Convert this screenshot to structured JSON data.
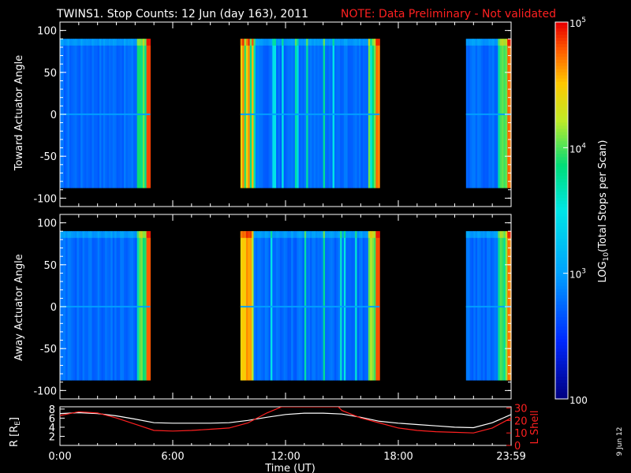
{
  "title": "TWINS1. Stop Counts: 12 Jun (day 163), 2011",
  "note": "NOTE: Data Preliminary - Not validated",
  "colorbar": {
    "label_main": "LOG",
    "label_sub": "10",
    "label_rest": "(Total Stops per Scan)",
    "ticks": [
      {
        "value": 100000,
        "label_base": "10",
        "label_exp": "5"
      },
      {
        "value": 10000,
        "label_base": "10",
        "label_exp": "4"
      },
      {
        "value": 1000,
        "label_base": "10",
        "label_exp": "3"
      },
      {
        "value": 100,
        "label_base": "100",
        "label_exp": ""
      }
    ],
    "range": [
      100,
      100000
    ]
  },
  "date_stamp": "9 Jun 12",
  "chart_data": [
    {
      "type": "heatmap",
      "ylabel": "Toward Actuator Angle",
      "ylim": [
        -110,
        110
      ],
      "y_ticks": [
        100,
        50,
        0,
        -50,
        -100
      ],
      "data_y_range": [
        -88,
        90
      ],
      "x_unit": "hours UT",
      "xlim": [
        0,
        24
      ],
      "coverage": [
        [
          0.0,
          4.8
        ],
        [
          9.6,
          17.0
        ],
        [
          21.6,
          24.0
        ]
      ],
      "typical_log10": 2.75
    },
    {
      "type": "heatmap",
      "ylabel": "Away Actuator Angle",
      "ylim": [
        -110,
        110
      ],
      "y_ticks": [
        100,
        50,
        0,
        -50,
        -100
      ],
      "data_y_range": [
        -88,
        90
      ],
      "x_unit": "hours UT",
      "xlim": [
        0,
        24
      ],
      "coverage": [
        [
          0.0,
          4.8
        ],
        [
          9.6,
          17.0
        ],
        [
          21.6,
          24.0
        ]
      ],
      "typical_log10": 2.75
    },
    {
      "type": "line",
      "ylabel_left": "R [R",
      "ylabel_left_sub": "E",
      "ylabel_left_end": "]",
      "ylabel_right": "L Shell",
      "left_ticks": [
        8,
        6,
        4,
        2
      ],
      "right_ticks": [
        30,
        20,
        10,
        0
      ],
      "left_ylim": [
        0,
        8.5
      ],
      "right_ylim": [
        0,
        31
      ],
      "xlabel": "Time (UT)",
      "x_ticks": [
        "0:00",
        "6:00",
        "12:00",
        "18:00",
        "23:59"
      ],
      "x_tick_hours": [
        0,
        6,
        12,
        18,
        24
      ],
      "series": [
        {
          "color": "#ffffff",
          "x": [
            0,
            1,
            2,
            3,
            4,
            5,
            6,
            7,
            8,
            9,
            10,
            11,
            12,
            13,
            14,
            15,
            16,
            17,
            18,
            19,
            20,
            21,
            22,
            23,
            24
          ],
          "values": [
            7.0,
            7.2,
            7.0,
            6.5,
            5.8,
            5.0,
            4.9,
            4.9,
            4.9,
            5.0,
            5.5,
            6.2,
            6.8,
            7.1,
            7.1,
            6.9,
            6.2,
            5.3,
            4.9,
            4.6,
            4.3,
            4.0,
            3.9,
            5.0,
            6.8
          ]
        },
        {
          "color": "#ff2020",
          "x": [
            0,
            1,
            2,
            3,
            4,
            5,
            6,
            7,
            8,
            9,
            10,
            11,
            11.8,
            14.8,
            15,
            16,
            17,
            18,
            19,
            20,
            21,
            22,
            23,
            24
          ],
          "values": [
            24,
            27,
            26,
            22,
            17,
            12,
            11.5,
            12,
            13,
            14,
            18,
            26,
            31,
            31,
            28,
            22,
            18,
            14,
            12,
            11,
            10.5,
            10,
            14,
            22
          ]
        }
      ]
    }
  ]
}
